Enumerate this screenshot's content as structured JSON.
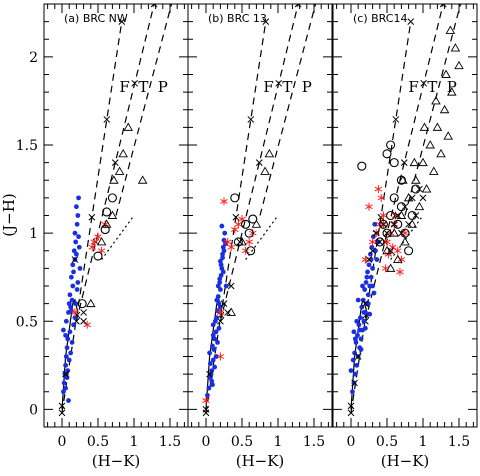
{
  "chart_data": [
    {
      "type": "scatter",
      "title": "(a) BRC NW",
      "xlabel": "(H−K)",
      "ylabel": "(J−H)",
      "xlim": [
        -0.25,
        1.75
      ],
      "ylim": [
        -0.1,
        2.3
      ],
      "x_ticks": [
        0,
        0.5,
        1,
        1.5
      ],
      "x_tick_labels": [
        "0",
        "0.5",
        "1",
        "1.5"
      ],
      "y_ticks": [
        0,
        0.5,
        1,
        1.5,
        2
      ],
      "y_tick_labels": [
        "0",
        "0.5",
        "1",
        "1.5",
        "2"
      ],
      "ftp_labels": [
        "F",
        "T",
        "P"
      ],
      "series": [
        {
          "marker": "blue-dot",
          "x": [
            0.02,
            0.03,
            0.04,
            0.05,
            0.06,
            0.07,
            0.02,
            0.05,
            0.08,
            0.06,
            0.09,
            0.1,
            0.12,
            0.11,
            0.14,
            0.15,
            0.13,
            0.16,
            0.15,
            0.18,
            0.17,
            0.2,
            0.19,
            0.18,
            0.21,
            0.22,
            0.2,
            0.23,
            0.24,
            0.22,
            0.25,
            0.21,
            0.19,
            0.23,
            0.18,
            0.16,
            0.14,
            0.12,
            0.08,
            0.1,
            0.05,
            0.07,
            0.09,
            0.11,
            0.13
          ],
          "y": [
            0.1,
            0.15,
            0.2,
            0.25,
            0.3,
            0.35,
            0.45,
            0.42,
            0.4,
            0.5,
            0.55,
            0.6,
            0.58,
            0.65,
            0.62,
            0.7,
            0.75,
            0.78,
            0.82,
            0.85,
            0.9,
            0.88,
            0.95,
            1.0,
            1.05,
            1.1,
            1.15,
            1.2,
            0.92,
            0.72,
            0.8,
            0.68,
            0.6,
            0.98,
            0.52,
            0.48,
            0.38,
            0.32,
            0.22,
            0.28,
            0.12,
            0.18,
            0.05,
            0.44,
            0.56
          ]
        },
        {
          "marker": "red-star",
          "x": [
            0.18,
            0.35,
            0.42,
            0.45,
            0.5,
            0.55,
            0.6
          ],
          "y": [
            0.55,
            0.48,
            0.92,
            0.95,
            0.98,
            0.9,
            1.05
          ]
        },
        {
          "marker": "open-circle",
          "x": [
            0.28,
            0.5,
            0.6,
            0.62,
            0.7
          ],
          "y": [
            0.6,
            0.87,
            1.02,
            1.12,
            1.2
          ]
        },
        {
          "marker": "triangle",
          "x": [
            0.4,
            0.55,
            0.62,
            0.7,
            0.72,
            0.8,
            0.85,
            0.92,
            1.12
          ],
          "y": [
            0.6,
            0.95,
            1.05,
            1.1,
            1.3,
            1.35,
            1.45,
            1.6,
            1.3
          ]
        },
        {
          "marker": "cross",
          "x": [
            0.0,
            0.05,
            0.18,
            0.3,
            0.3
          ],
          "y": [
            0.02,
            0.2,
            0.85,
            0.55,
            0.5
          ]
        }
      ]
    },
    {
      "type": "scatter",
      "title": "(b) BRC 13",
      "xlabel": "(H−K)",
      "xlim": [
        -0.25,
        1.75
      ],
      "ylim": [
        -0.1,
        2.3
      ],
      "x_ticks": [
        0,
        0.5,
        1,
        1.5
      ],
      "x_tick_labels": [
        "0",
        "0.5",
        "1",
        "1.5"
      ],
      "ftp_labels": [
        "F",
        "T",
        "P"
      ],
      "series": [
        {
          "marker": "blue-dot",
          "x": [
            0.02,
            0.04,
            0.06,
            0.08,
            0.1,
            0.05,
            0.09,
            0.12,
            0.14,
            0.1,
            0.15,
            0.16,
            0.18,
            0.17,
            0.2,
            0.19,
            0.21,
            0.22,
            0.2,
            0.23,
            0.24,
            0.25,
            0.26,
            0.22,
            0.24,
            0.2,
            0.18,
            0.16,
            0.14,
            0.12,
            0.08,
            0.06,
            0.1,
            0.13,
            0.15,
            0.17,
            0.19,
            0.21,
            0.23,
            0.25,
            0.27,
            0.28,
            0.11,
            0.07,
            0.09
          ],
          "y": [
            0.08,
            0.12,
            0.18,
            0.22,
            0.28,
            0.32,
            0.36,
            0.4,
            0.44,
            0.48,
            0.52,
            0.56,
            0.6,
            0.64,
            0.68,
            0.72,
            0.76,
            0.8,
            0.84,
            0.88,
            0.92,
            0.96,
            1.0,
            1.04,
            0.78,
            0.58,
            0.46,
            0.38,
            0.3,
            0.24,
            0.16,
            0.26,
            0.42,
            0.5,
            0.62,
            0.7,
            0.74,
            0.82,
            0.86,
            0.9,
            0.94,
            0.7,
            0.34,
            0.2,
            0.14
          ]
        },
        {
          "marker": "red-star",
          "x": [
            0.0,
            0.2,
            0.25,
            0.3,
            0.35,
            0.4,
            0.45,
            0.5,
            0.55,
            0.6,
            0.65,
            0.2
          ],
          "y": [
            0.05,
            0.3,
            1.18,
            0.95,
            0.92,
            1.02,
            1.05,
            1.08,
            0.9,
            0.95,
            1.0,
            0.55
          ]
        },
        {
          "marker": "open-circle",
          "x": [
            0.4,
            0.45,
            0.55,
            0.6,
            0.62,
            0.65
          ],
          "y": [
            1.2,
            0.95,
            1.05,
            1.0,
            0.9,
            1.08
          ]
        },
        {
          "marker": "triangle",
          "x": [
            0.35,
            0.5,
            0.7,
            0.82,
            0.88
          ],
          "y": [
            0.55,
            0.95,
            1.05,
            1.35,
            1.45
          ]
        },
        {
          "marker": "cross",
          "x": [
            0.0,
            0.05,
            0.25,
            0.3,
            0.35
          ],
          "y": [
            0.0,
            0.2,
            0.6,
            0.55,
            0.7
          ]
        }
      ]
    },
    {
      "type": "scatter",
      "title": "(c) BRC14",
      "xlabel": "(H−K)",
      "xlim": [
        -0.25,
        1.75
      ],
      "ylim": [
        -0.1,
        2.3
      ],
      "x_ticks": [
        0,
        0.5,
        1,
        1.5
      ],
      "x_tick_labels": [
        "0",
        "0.5",
        "1",
        "1.5"
      ],
      "ftp_labels": [
        "F",
        "T",
        "P"
      ],
      "series": [
        {
          "marker": "blue-dot",
          "x": [
            0.02,
            0.04,
            0.06,
            0.08,
            0.1,
            0.12,
            0.14,
            0.16,
            0.18,
            0.2,
            0.22,
            0.24,
            0.26,
            0.28,
            0.3,
            0.05,
            0.07,
            0.09,
            0.11,
            0.13,
            0.15,
            0.17,
            0.19,
            0.21,
            0.23,
            0.25,
            0.27,
            0.29,
            0.31,
            0.33,
            0.0,
            0.03,
            0.06,
            0.12,
            0.18,
            0.24,
            0.3,
            0.36,
            0.1,
            0.16,
            0.22,
            0.28,
            0.34,
            0.08,
            0.14,
            0.2,
            0.26,
            0.32,
            0.04,
            0.38
          ],
          "y": [
            0.1,
            0.15,
            0.2,
            0.25,
            0.3,
            0.35,
            0.4,
            0.45,
            0.5,
            0.55,
            0.6,
            0.65,
            0.7,
            0.75,
            0.8,
            0.32,
            0.38,
            0.42,
            0.48,
            0.52,
            0.58,
            0.62,
            0.68,
            0.72,
            0.78,
            0.82,
            0.88,
            0.92,
            0.98,
            1.05,
            0.22,
            0.28,
            0.4,
            0.45,
            0.55,
            0.6,
            0.7,
            0.85,
            0.62,
            0.7,
            0.75,
            0.85,
            0.9,
            0.5,
            0.34,
            0.46,
            0.54,
            0.66,
            0.44,
            0.95
          ]
        },
        {
          "marker": "red-star",
          "x": [
            0.2,
            0.3,
            0.35,
            0.4,
            0.45,
            0.5,
            0.55,
            0.6,
            0.65,
            0.7,
            0.75,
            0.25,
            0.42,
            0.48,
            0.52,
            0.58,
            0.62,
            0.68,
            0.38,
            0.45
          ],
          "y": [
            0.85,
            0.95,
            1.0,
            1.05,
            1.1,
            0.95,
            1.0,
            1.05,
            0.9,
            0.85,
            1.0,
            1.15,
            1.2,
            0.8,
            0.88,
            0.92,
            1.1,
            0.78,
            1.25,
            1.05
          ]
        },
        {
          "marker": "open-circle",
          "x": [
            0.15,
            0.4,
            0.45,
            0.5,
            0.55,
            0.6,
            0.65,
            0.7,
            0.75,
            0.8,
            0.85,
            0.9,
            0.55,
            0.6,
            0.7,
            0.5
          ],
          "y": [
            1.38,
            0.95,
            1.05,
            1.0,
            1.1,
            1.2,
            1.05,
            1.15,
            1.0,
            0.9,
            1.1,
            1.25,
            1.5,
            1.4,
            1.3,
            1.45
          ]
        },
        {
          "marker": "triangle",
          "x": [
            0.5,
            0.6,
            0.7,
            0.8,
            0.9,
            1.0,
            1.1,
            1.2,
            1.3,
            1.4,
            0.65,
            0.75,
            0.85,
            0.95,
            1.05,
            1.15,
            1.25,
            1.35,
            0.55,
            0.72,
            0.88,
            1.02,
            1.18,
            1.32,
            1.45,
            1.5,
            1.38
          ],
          "y": [
            0.9,
            1.0,
            1.1,
            1.2,
            1.3,
            1.4,
            1.5,
            1.6,
            1.7,
            1.8,
            0.85,
            0.95,
            1.05,
            1.15,
            1.25,
            1.35,
            1.45,
            1.55,
            0.8,
            1.3,
            1.4,
            1.6,
            1.75,
            1.9,
            2.05,
            1.95,
            2.15
          ]
        },
        {
          "marker": "cross",
          "x": [
            0.0,
            0.05,
            0.1,
            0.2,
            0.25,
            0.3,
            0.35,
            0.4,
            0.45,
            0.5,
            0.55,
            0.6,
            0.65,
            0.7,
            0.75,
            0.8,
            0.85,
            0.9,
            0.95,
            1.0
          ],
          "y": [
            0.02,
            0.15,
            0.3,
            0.6,
            0.85,
            0.9,
            1.0,
            0.95,
            1.05,
            1.0,
            0.9,
            1.05,
            1.1,
            1.0,
            1.15,
            1.05,
            1.2,
            1.1,
            1.25,
            1.2
          ]
        }
      ]
    }
  ],
  "reference_curves": {
    "model_line": {
      "x": [
        0.0,
        0.05,
        0.15,
        0.18,
        0.22
      ],
      "y": [
        0.0,
        0.3,
        0.6,
        0.62,
        0.55
      ]
    },
    "dashed_1": {
      "x": [
        0.0,
        0.83
      ],
      "y": [
        -0.02,
        2.2
      ]
    },
    "dashed_2": {
      "x": [
        0.2,
        1.28
      ],
      "y": [
        0.5,
        2.3
      ]
    },
    "dashed_3": {
      "x": [
        0.75,
        1.65
      ],
      "y": [
        1.1,
        2.5
      ]
    },
    "ctts_dotted": {
      "x": [
        0.55,
        1.0
      ],
      "y": [
        0.85,
        1.1
      ]
    }
  }
}
